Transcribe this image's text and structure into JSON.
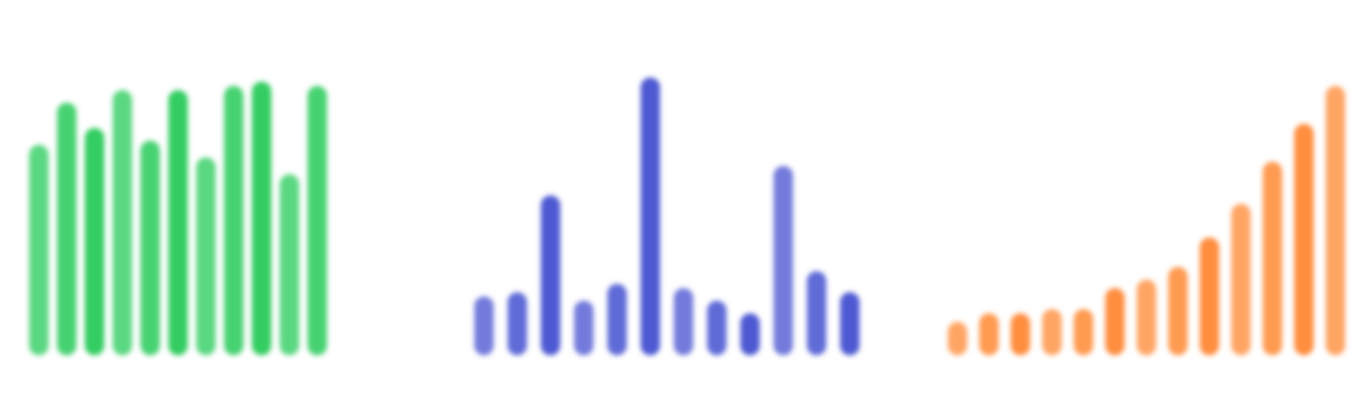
{
  "chart_data": [
    {
      "type": "bar",
      "title": "",
      "xlabel": "",
      "ylabel": "",
      "ylim": [
        0,
        350
      ],
      "grid": false,
      "legend": "none",
      "color": "#2ecc5e",
      "values": [
        250,
        300,
        270,
        315,
        255,
        315,
        235,
        320,
        325,
        215,
        320
      ]
    },
    {
      "type": "bar",
      "title": "",
      "xlabel": "",
      "ylabel": "",
      "ylim": [
        0,
        350
      ],
      "grid": false,
      "legend": "none",
      "color": "#4a55d1",
      "values": [
        70,
        75,
        190,
        65,
        85,
        330,
        80,
        65,
        50,
        225,
        100,
        75
      ]
    },
    {
      "type": "bar",
      "title": "",
      "xlabel": "",
      "ylabel": "",
      "ylim": [
        0,
        350
      ],
      "grid": false,
      "legend": "none",
      "color": "#ff8c3a",
      "values": [
        40,
        50,
        50,
        55,
        55,
        80,
        90,
        105,
        140,
        180,
        230,
        275,
        320
      ]
    }
  ]
}
